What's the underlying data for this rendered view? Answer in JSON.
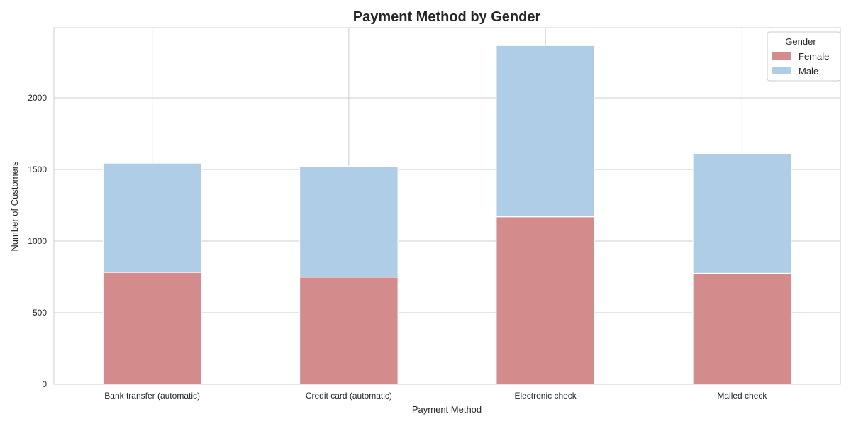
{
  "chart_data": {
    "type": "bar",
    "stacked": true,
    "title": "Payment Method by Gender",
    "xlabel": "Payment Method",
    "ylabel": "Number of Customers",
    "categories": [
      "Bank transfer (automatic)",
      "Credit card (automatic)",
      "Electronic check",
      "Mailed check"
    ],
    "series": [
      {
        "name": "Female",
        "values": [
          782,
          749,
          1170,
          775
        ],
        "color": "#d38b8b"
      },
      {
        "name": "Male",
        "values": [
          762,
          773,
          1195,
          837
        ],
        "color": "#afcde6"
      }
    ],
    "ylim": [
      0,
      2490
    ],
    "yticks": [
      0,
      500,
      1000,
      1500,
      2000
    ],
    "grid": true,
    "legend": {
      "title": "Gender",
      "position": "top-right"
    }
  }
}
